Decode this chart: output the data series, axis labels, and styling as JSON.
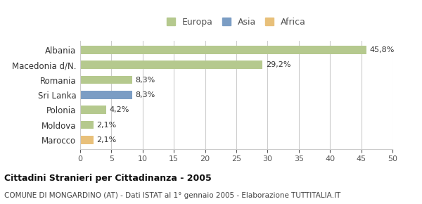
{
  "categories": [
    "Marocco",
    "Moldova",
    "Polonia",
    "Sri Lanka",
    "Romania",
    "Macedonia d/N.",
    "Albania"
  ],
  "values": [
    2.1,
    2.1,
    4.2,
    8.3,
    8.3,
    29.2,
    45.8
  ],
  "labels": [
    "2,1%",
    "2,1%",
    "4,2%",
    "8,3%",
    "8,3%",
    "29,2%",
    "45,8%"
  ],
  "colors": [
    "#e8c07a",
    "#b5c98e",
    "#b5c98e",
    "#7b9dc4",
    "#b5c98e",
    "#b5c98e",
    "#b5c98e"
  ],
  "legend_labels": [
    "Europa",
    "Asia",
    "Africa"
  ],
  "legend_colors": [
    "#b5c98e",
    "#7b9dc4",
    "#e8c07a"
  ],
  "xlim": [
    0,
    50
  ],
  "xticks": [
    0,
    5,
    10,
    15,
    20,
    25,
    30,
    35,
    40,
    45,
    50
  ],
  "title_bold": "Cittadini Stranieri per Cittadinanza - 2005",
  "subtitle": "COMUNE DI MONGARDINO (AT) - Dati ISTAT al 1° gennaio 2005 - Elaborazione TUTTITALIA.IT",
  "background_color": "#ffffff",
  "grid_color": "#cccccc"
}
